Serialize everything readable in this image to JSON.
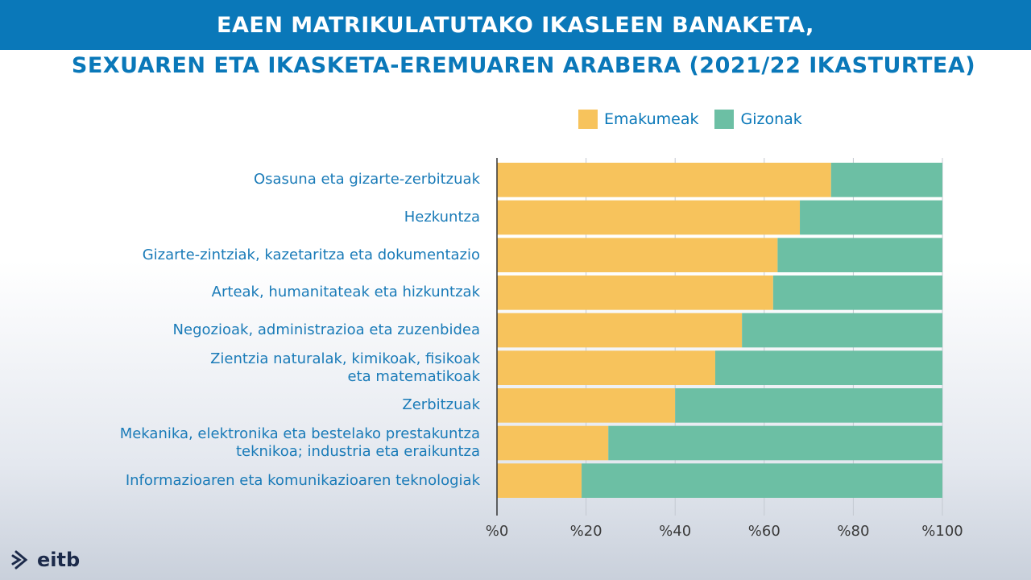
{
  "title": {
    "line1": "EAEN MATRIKULATUTAKO IKASLEEN BANAKETA,",
    "line2": "SEXUAREN ETA IKASKETA-EREMUAREN ARABERA (2021/22 IKASTURTEA)"
  },
  "logo": {
    "text": "eitb",
    "icon": "eitb-logo-icon"
  },
  "colors": {
    "title_bar": "#0a78b9",
    "women": "#f7c35c",
    "men": "#6cbfa4"
  },
  "chart_data": {
    "type": "bar",
    "orientation": "horizontal",
    "stacked": true,
    "title": "EAEN MATRIKULATUTAKO IKASLEEN BANAKETA, SEXUAREN ETA IKASKETA-EREMUAREN ARABERA (2021/22 IKASTURTEA)",
    "categories": [
      "Osasuna eta gizarte-zerbitzuak",
      "Hezkuntza",
      "Gizarte-zintziak, kazetaritza eta dokumentazio",
      "Arteak, humanitateak eta hizkuntzak",
      "Negozioak, administrazioa eta zuzenbidea",
      "Zientzia naturalak, kimikoak, fisikoak\neta matematikoak",
      "Zerbitzuak",
      "Mekanika, elektronika eta bestelako prestakuntza\nteknikoa; industria eta eraikuntza",
      "Informazioaren eta komunikazioaren teknologiak"
    ],
    "series": [
      {
        "name": "Emakumeak",
        "color": "#f7c35c",
        "values": [
          75,
          68,
          63,
          62,
          55,
          49,
          40,
          25,
          19
        ]
      },
      {
        "name": "Gizonak",
        "color": "#6cbfa4",
        "values": [
          25,
          32,
          37,
          38,
          45,
          51,
          60,
          75,
          81
        ]
      }
    ],
    "xlim": [
      0,
      100
    ],
    "xticks": [
      "%0",
      "%20",
      "%40",
      "%60",
      "%80",
      "%100"
    ],
    "grid": true,
    "legend": "top"
  }
}
